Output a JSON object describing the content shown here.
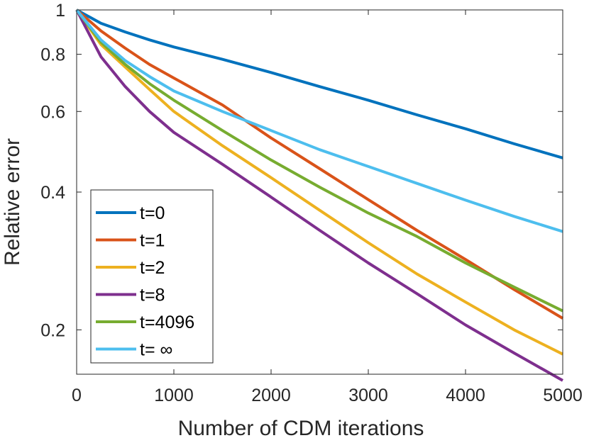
{
  "chart_data": {
    "type": "line",
    "xlabel": "Number of CDM iterations",
    "ylabel": "Relative error",
    "xlim": [
      0,
      5000
    ],
    "ylim": [
      0.16,
      1
    ],
    "yscale": "log",
    "xticks": [
      0,
      1000,
      2000,
      3000,
      4000,
      5000
    ],
    "xtick_labels": [
      "0",
      "1000",
      "2000",
      "3000",
      "4000",
      "5000"
    ],
    "yticks": [
      0.2,
      0.4,
      0.6,
      0.8,
      1
    ],
    "ytick_labels": [
      "0.2",
      "0.4",
      "0.6",
      "0.8",
      "1"
    ],
    "legend_position": "bottom-left",
    "x": [
      0,
      250,
      500,
      750,
      1000,
      1500,
      2000,
      2500,
      3000,
      3500,
      4000,
      4500,
      5000
    ],
    "series": [
      {
        "name": "t=0",
        "label": "t=0",
        "color": "#0072BD",
        "values": [
          1.0,
          0.935,
          0.895,
          0.86,
          0.83,
          0.78,
          0.73,
          0.68,
          0.635,
          0.59,
          0.55,
          0.51,
          0.475
        ]
      },
      {
        "name": "t=1",
        "label": "t=1",
        "color": "#D95319",
        "values": [
          1.0,
          0.9,
          0.825,
          0.76,
          0.71,
          0.62,
          0.525,
          0.45,
          0.385,
          0.33,
          0.285,
          0.245,
          0.212
        ]
      },
      {
        "name": "t=2",
        "label": "t=2",
        "color": "#EDB120",
        "values": [
          1.0,
          0.84,
          0.75,
          0.67,
          0.6,
          0.505,
          0.43,
          0.365,
          0.31,
          0.265,
          0.23,
          0.2,
          0.177
        ]
      },
      {
        "name": "t=8",
        "label": "t=8",
        "color": "#7E2F8E",
        "values": [
          1.0,
          0.79,
          0.68,
          0.6,
          0.54,
          0.46,
          0.39,
          0.33,
          0.28,
          0.24,
          0.205,
          0.178,
          0.155
        ]
      },
      {
        "name": "t=4096",
        "label": "t=4096",
        "color": "#77AC30",
        "values": [
          1.0,
          0.85,
          0.76,
          0.69,
          0.635,
          0.545,
          0.47,
          0.41,
          0.36,
          0.32,
          0.28,
          0.248,
          0.22
        ]
      },
      {
        "name": "t=inf",
        "label": "t= ∞",
        "color": "#4DBEEE",
        "values": [
          1.0,
          0.86,
          0.775,
          0.715,
          0.665,
          0.6,
          0.545,
          0.495,
          0.455,
          0.418,
          0.384,
          0.354,
          0.328
        ]
      }
    ]
  }
}
